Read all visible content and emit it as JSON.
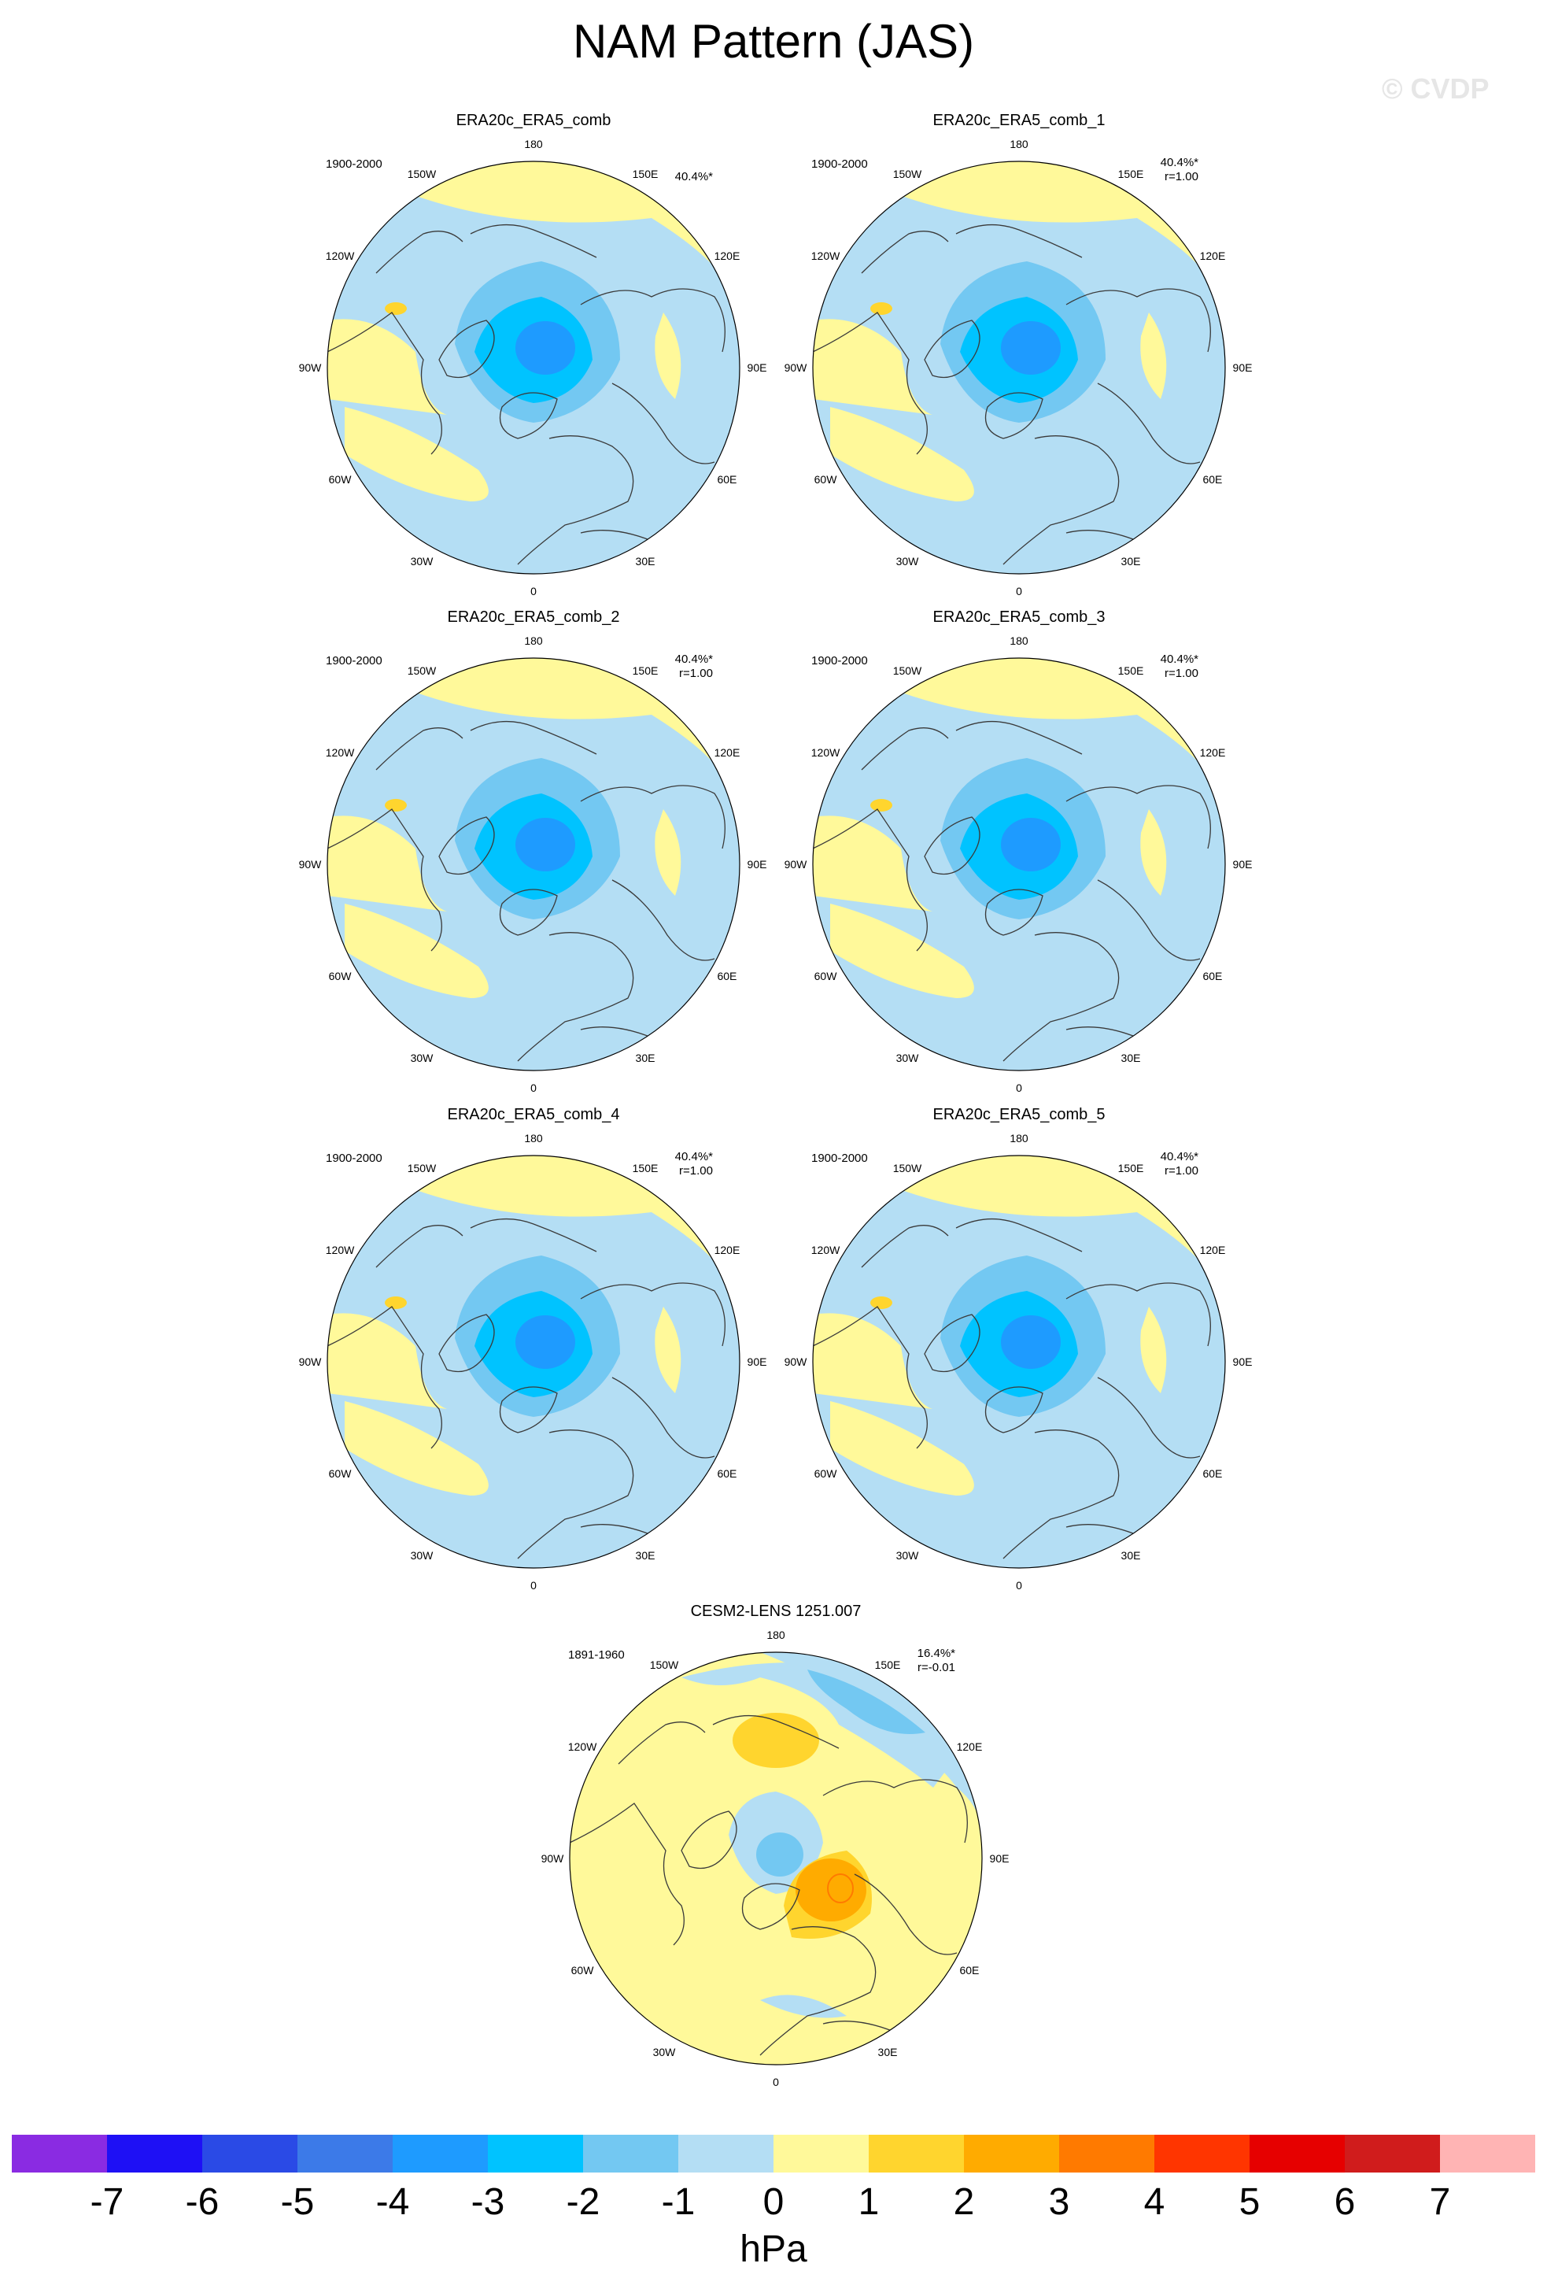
{
  "title": "NAM Pattern (JAS)",
  "watermark": "© CVDP",
  "lon_labels": [
    "180",
    "150E",
    "120E",
    "90E",
    "60E",
    "30E",
    "0",
    "30W",
    "60W",
    "90W",
    "120W",
    "150W"
  ],
  "panels": [
    {
      "name": "ERA20c_ERA5_comb",
      "period": "1900-2000",
      "pct": "40.4%*",
      "corr": "",
      "pattern": "obs"
    },
    {
      "name": "ERA20c_ERA5_comb_1",
      "period": "1900-2000",
      "pct": "40.4%*",
      "corr": "r=1.00",
      "pattern": "obs"
    },
    {
      "name": "ERA20c_ERA5_comb_2",
      "period": "1900-2000",
      "pct": "40.4%*",
      "corr": "r=1.00",
      "pattern": "obs"
    },
    {
      "name": "ERA20c_ERA5_comb_3",
      "period": "1900-2000",
      "pct": "40.4%*",
      "corr": "r=1.00",
      "pattern": "obs"
    },
    {
      "name": "ERA20c_ERA5_comb_4",
      "period": "1900-2000",
      "pct": "40.4%*",
      "corr": "r=1.00",
      "pattern": "obs"
    },
    {
      "name": "ERA20c_ERA5_comb_5",
      "period": "1900-2000",
      "pct": "40.4%*",
      "corr": "r=1.00",
      "pattern": "obs"
    },
    {
      "name": "CESM2-LENS 1251.007",
      "period": "1891-1960",
      "pct": "16.4%*",
      "corr": "r=-0.01",
      "pattern": "model"
    }
  ],
  "colorbar": {
    "units": "hPa",
    "tick_labels": [
      "-7",
      "-6",
      "-5",
      "-4",
      "-3",
      "-2",
      "-1",
      "0",
      "1",
      "2",
      "3",
      "4",
      "5",
      "6",
      "7"
    ],
    "colors": [
      "#8a2be2",
      "#1e10f5",
      "#2a4ae6",
      "#3c7ae8",
      "#1e9bff",
      "#00c3ff",
      "#73c8f2",
      "#b4def4",
      "#fff99a",
      "#ffd52e",
      "#ffab00",
      "#ff7a00",
      "#ff3500",
      "#e60000",
      "#d01c1c",
      "#ffb4b4"
    ]
  }
}
